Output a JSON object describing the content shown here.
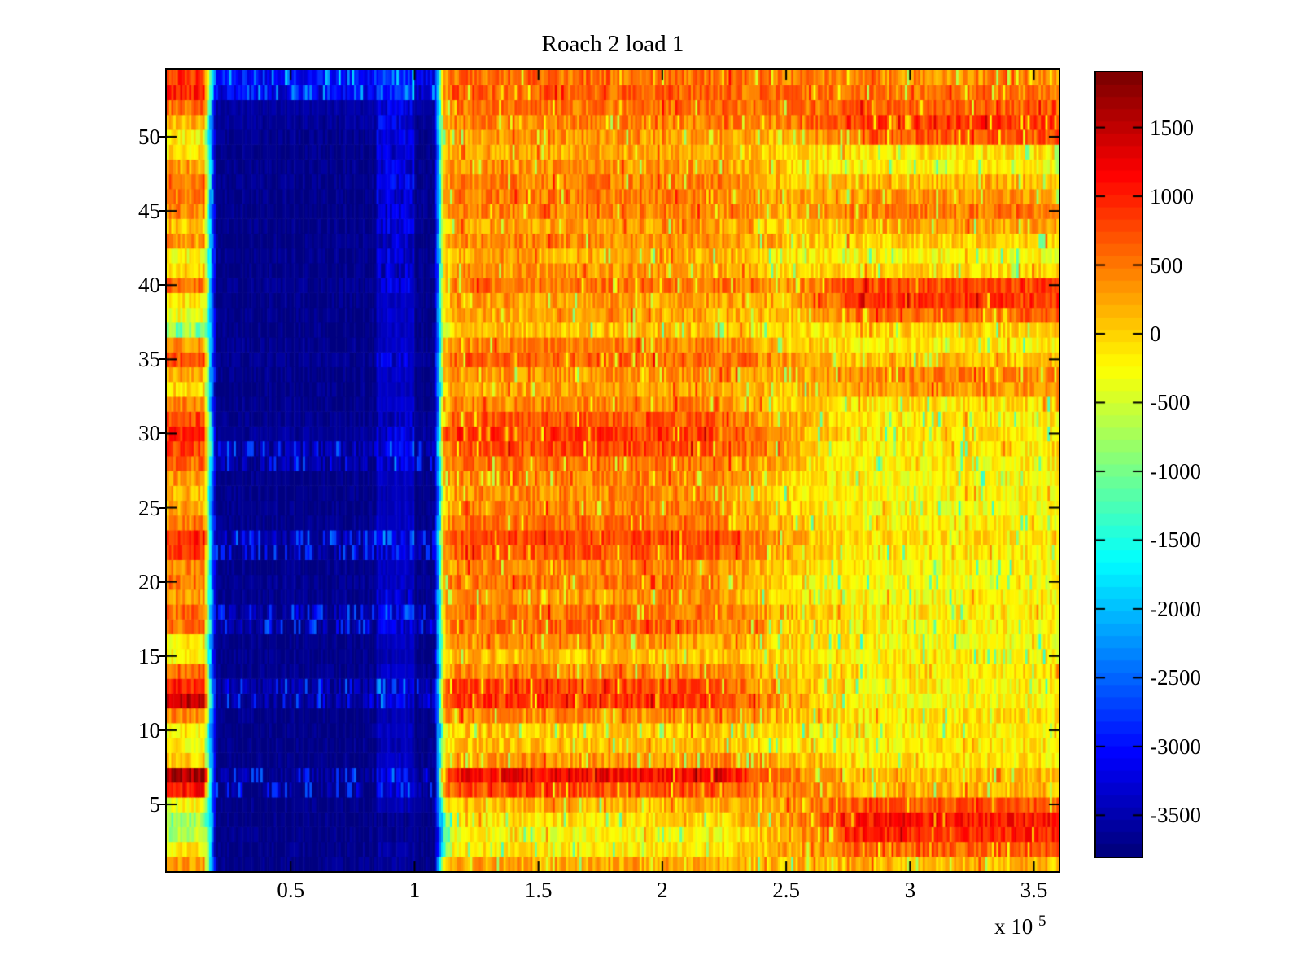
{
  "title": "Roach 2 load 1",
  "x_axis": {
    "exponent_base": "x 10",
    "exponent_power": "5"
  },
  "chart_data": {
    "type": "heatmap",
    "title": "Roach 2 load 1",
    "x_range": [
      0,
      360000
    ],
    "x_tick_values": [
      50000,
      100000,
      150000,
      200000,
      250000,
      300000,
      350000
    ],
    "x_tick_labels": [
      "0.5",
      "1",
      "1.5",
      "2",
      "2.5",
      "3",
      "3.5"
    ],
    "x_scale_annotation": "x 10^5",
    "y_range": [
      0.5,
      54.5
    ],
    "n_rows": 54,
    "y_tick_values": [
      5,
      10,
      15,
      20,
      25,
      30,
      35,
      40,
      45,
      50
    ],
    "y_tick_labels": [
      "5",
      "10",
      "15",
      "20",
      "25",
      "30",
      "35",
      "40",
      "45",
      "50"
    ],
    "colormap": "jet",
    "colormap_levels": 64,
    "clim": [
      -3800,
      1900
    ],
    "colorbar_tick_values": [
      1500,
      1000,
      500,
      0,
      -500,
      -1000,
      -1500,
      -2000,
      -2500,
      -3000,
      -3500
    ],
    "colorbar_tick_labels": [
      "1500",
      "1000",
      "500",
      "0",
      "-500",
      "-1000",
      "-1500",
      "-2000",
      "-2500",
      "-3000",
      "-3500"
    ],
    "grid": false,
    "legend": "colorbar-right",
    "x_segment_bounds": [
      0,
      15000,
      20000,
      85000,
      100000,
      108000,
      116000,
      220000,
      280000,
      360000
    ],
    "segment_blend": [
      false,
      true,
      false,
      false,
      false,
      true,
      false,
      true,
      false
    ],
    "rows_note": "rows[0] is row 1 (bottom of plot), rows[53] is row 54 (top). Each row lists the mean value per x-segment, in colorbar units.",
    "rows": [
      [
        300,
        -1800,
        -3750,
        -3650,
        -3750,
        -300,
        250,
        100,
        150
      ],
      [
        -150,
        -1500,
        -3750,
        -3600,
        -3750,
        -1200,
        -150,
        250,
        700
      ],
      [
        -700,
        -1600,
        -3750,
        -3700,
        -3750,
        -1500,
        -250,
        150,
        1000
      ],
      [
        -800,
        -1700,
        -3750,
        -3700,
        -3750,
        -1200,
        -100,
        300,
        1100
      ],
      [
        -300,
        -1900,
        -3750,
        -3500,
        -3750,
        -400,
        150,
        300,
        700
      ],
      [
        1100,
        -1500,
        -3700,
        -3300,
        -3700,
        300,
        750,
        450,
        150
      ],
      [
        1700,
        -1200,
        -3650,
        -3200,
        -3650,
        500,
        1200,
        500,
        100
      ],
      [
        0,
        -1900,
        -3750,
        -3400,
        -3700,
        -300,
        350,
        150,
        -100
      ],
      [
        -250,
        -2000,
        -3750,
        -3500,
        -3750,
        -400,
        100,
        -100,
        -150
      ],
      [
        -150,
        -2000,
        -3750,
        -3400,
        -3750,
        -300,
        50,
        -150,
        -200
      ],
      [
        450,
        -1900,
        -3750,
        -3500,
        -3750,
        300,
        400,
        100,
        -100
      ],
      [
        1500,
        -1300,
        -3650,
        -3250,
        -3650,
        700,
        900,
        300,
        -250
      ],
      [
        1000,
        -1400,
        -3600,
        -3300,
        -3650,
        500,
        800,
        200,
        -200
      ],
      [
        600,
        -1800,
        -3700,
        -3400,
        -3700,
        0,
        400,
        100,
        -150
      ],
      [
        -200,
        -2000,
        -3750,
        -3500,
        -3750,
        -300,
        100,
        -100,
        -200
      ],
      [
        -100,
        -1900,
        -3750,
        -3450,
        -3750,
        -200,
        300,
        0,
        -250
      ],
      [
        500,
        -1700,
        -3600,
        -3300,
        -3650,
        100,
        600,
        100,
        -200
      ],
      [
        600,
        -1700,
        -3650,
        -3300,
        -3650,
        200,
        550,
        200,
        -150
      ],
      [
        400,
        -1800,
        -3700,
        -3350,
        -3700,
        100,
        350,
        -100,
        -250
      ],
      [
        550,
        -1800,
        -3700,
        -3400,
        -3700,
        200,
        500,
        -50,
        -300
      ],
      [
        450,
        -1800,
        -3750,
        -3450,
        -3750,
        100,
        400,
        0,
        -200
      ],
      [
        900,
        -1500,
        -3650,
        -3300,
        -3650,
        400,
        700,
        200,
        -150
      ],
      [
        1000,
        -1400,
        -3550,
        -3250,
        -3600,
        500,
        800,
        250,
        -100
      ],
      [
        500,
        -1800,
        -3700,
        -3400,
        -3700,
        100,
        550,
        100,
        -200
      ],
      [
        300,
        -1900,
        -3750,
        -3450,
        -3750,
        0,
        450,
        0,
        -250
      ],
      [
        200,
        -1900,
        -3750,
        -3500,
        -3750,
        -100,
        400,
        -50,
        -200
      ],
      [
        350,
        -1900,
        -3750,
        -3450,
        -3750,
        0,
        450,
        0,
        -250
      ],
      [
        600,
        -1700,
        -3600,
        -3300,
        -3650,
        200,
        550,
        100,
        -200
      ],
      [
        800,
        -1500,
        -3550,
        -3250,
        -3600,
        400,
        750,
        200,
        -150
      ],
      [
        1000,
        -1400,
        -3650,
        -3300,
        -3650,
        700,
        850,
        250,
        -100
      ],
      [
        800,
        -1600,
        -3700,
        -3350,
        -3700,
        300,
        700,
        200,
        -150
      ],
      [
        400,
        -1800,
        -3750,
        -3400,
        -3750,
        100,
        450,
        0,
        -100
      ],
      [
        0,
        -1900,
        -3750,
        -3450,
        -3750,
        -200,
        250,
        100,
        350
      ],
      [
        200,
        -1900,
        -3750,
        -3400,
        -3750,
        0,
        350,
        200,
        450
      ],
      [
        700,
        -1700,
        -3700,
        -3350,
        -3700,
        300,
        650,
        300,
        100
      ],
      [
        300,
        -1800,
        -3750,
        -3400,
        -3750,
        0,
        450,
        100,
        -200
      ],
      [
        -900,
        -1800,
        -3750,
        -3450,
        -3750,
        -400,
        100,
        -100,
        0
      ],
      [
        -300,
        -1900,
        -3750,
        -3400,
        -3750,
        -100,
        250,
        100,
        600
      ],
      [
        -100,
        -1900,
        -3750,
        -3450,
        -3750,
        0,
        300,
        200,
        900
      ],
      [
        500,
        -1800,
        -3700,
        -3300,
        -3700,
        200,
        550,
        300,
        800
      ],
      [
        0,
        -1900,
        -3750,
        -3350,
        -3750,
        -100,
        300,
        0,
        0
      ],
      [
        -200,
        -1900,
        -3750,
        -3300,
        -3750,
        -200,
        200,
        -100,
        -250
      ],
      [
        300,
        -1800,
        -3750,
        -3350,
        -3750,
        0,
        400,
        100,
        0
      ],
      [
        100,
        -1900,
        -3750,
        -3300,
        -3750,
        -100,
        300,
        0,
        250
      ],
      [
        400,
        -1800,
        -3750,
        -3350,
        -3750,
        100,
        450,
        200,
        500
      ],
      [
        500,
        -1800,
        -3750,
        -3300,
        -3700,
        200,
        500,
        250,
        300
      ],
      [
        600,
        -1700,
        -3700,
        -3250,
        -3700,
        200,
        450,
        150,
        150
      ],
      [
        300,
        -1800,
        -3750,
        -3300,
        -3750,
        0,
        350,
        0,
        -250
      ],
      [
        -100,
        -1900,
        -3750,
        -3350,
        -3750,
        -200,
        250,
        -100,
        -100
      ],
      [
        -200,
        -1900,
        -3700,
        -3300,
        -3700,
        -100,
        300,
        200,
        700
      ],
      [
        200,
        -1800,
        -3650,
        -3250,
        -3650,
        100,
        450,
        400,
        900
      ],
      [
        600,
        -1600,
        -3600,
        -3200,
        -3600,
        300,
        550,
        500,
        650
      ],
      [
        1000,
        -1300,
        -3200,
        -2900,
        -3300,
        400,
        650,
        550,
        500
      ],
      [
        900,
        -1100,
        -3000,
        -2800,
        -3100,
        300,
        600,
        500,
        400
      ]
    ],
    "band_speckle_rows": [
      6,
      7,
      12,
      13,
      17,
      18,
      22,
      23,
      28,
      29,
      53,
      54
    ],
    "noise": {
      "warm_amp": 320,
      "band_amp": 120,
      "band_speckle_amp": 300,
      "strip_amp": 350,
      "transition_amp": 450,
      "green_streak_drop": 850,
      "red_streak_boost": 380,
      "band_streak_boost": 800
    }
  }
}
